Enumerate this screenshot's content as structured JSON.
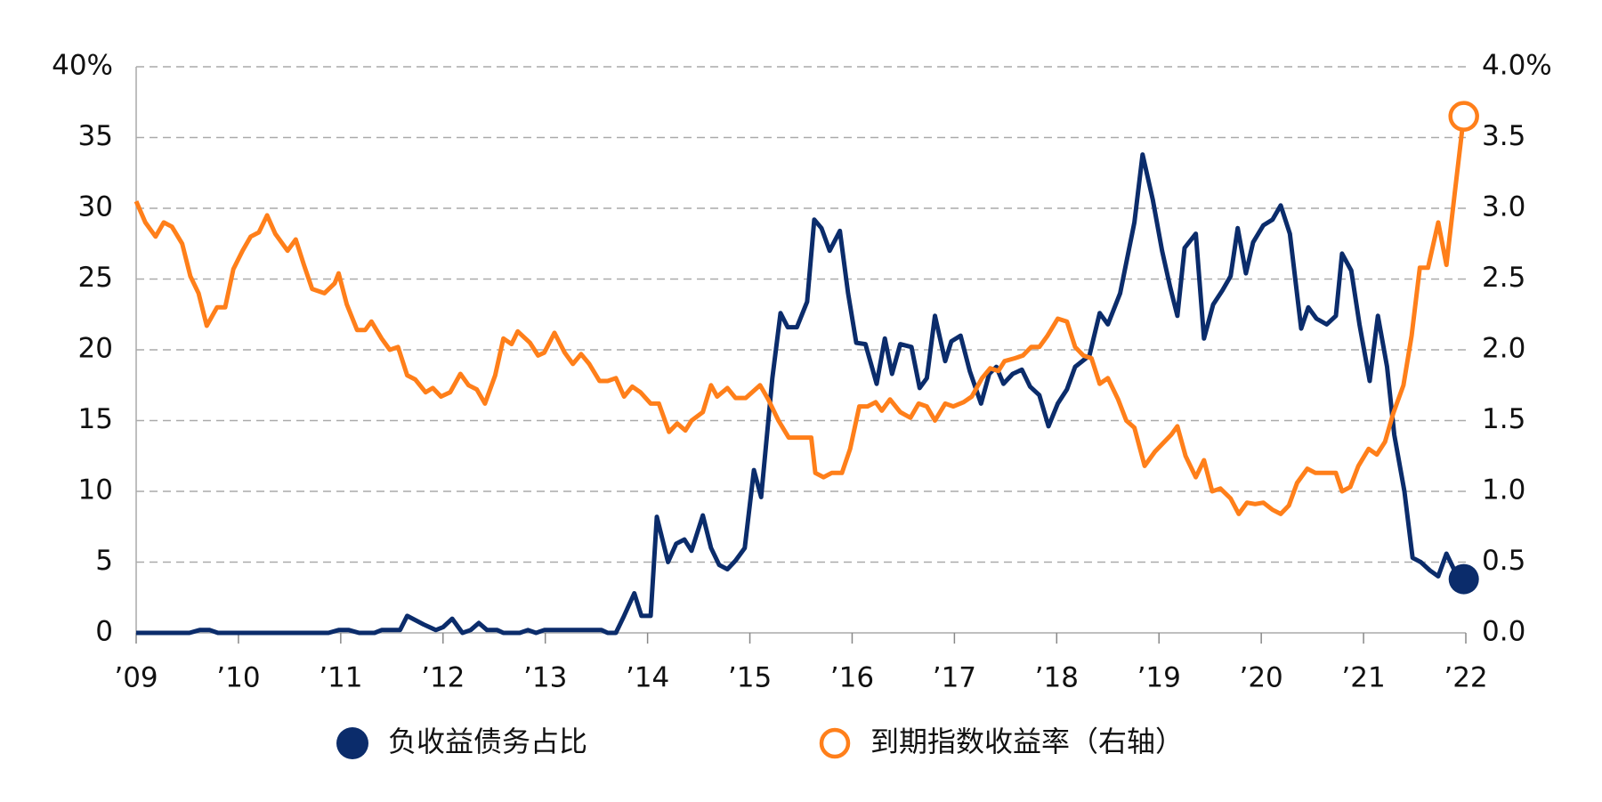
{
  "chart_data": {
    "type": "line",
    "xlim": [
      2009,
      2022
    ],
    "xticks": [
      {
        "value": 2009,
        "label": "’09"
      },
      {
        "value": 2010,
        "label": "’10"
      },
      {
        "value": 2011,
        "label": "’11"
      },
      {
        "value": 2012,
        "label": "’12"
      },
      {
        "value": 2013,
        "label": "’13"
      },
      {
        "value": 2014,
        "label": "’14"
      },
      {
        "value": 2015,
        "label": "’15"
      },
      {
        "value": 2016,
        "label": "’16"
      },
      {
        "value": 2017,
        "label": "’17"
      },
      {
        "value": 2018,
        "label": "’18"
      },
      {
        "value": 2019,
        "label": "’19"
      },
      {
        "value": 2020,
        "label": "’20"
      },
      {
        "value": 2021,
        "label": "’21"
      },
      {
        "value": 2022,
        "label": "’22"
      }
    ],
    "ylim": [
      0,
      40
    ],
    "yticks": [
      0,
      5,
      10,
      15,
      20,
      25,
      30,
      35,
      {
        "value": 40,
        "label": "40%"
      }
    ],
    "y2lim": [
      0,
      4
    ],
    "y2ticks": [
      {
        "value": 0,
        "label": "0.0"
      },
      {
        "value": 0.5,
        "label": "0.5"
      },
      {
        "value": 1,
        "label": "1.0"
      },
      {
        "value": 1.5,
        "label": "1.5"
      },
      {
        "value": 2,
        "label": "2.0"
      },
      {
        "value": 2.5,
        "label": "2.5"
      },
      {
        "value": 3,
        "label": "3.0"
      },
      {
        "value": 3.5,
        "label": "3.5"
      },
      {
        "value": 4,
        "label": "4.0%"
      }
    ],
    "grid": true,
    "series": [
      {
        "name": "负收益债务占比",
        "color": "#0b2c6b",
        "axis": "y",
        "end_marker": "filled",
        "x": [
          2009.0,
          2009.52,
          2009.62,
          2009.72,
          2009.8,
          2010.88,
          2010.98,
          2011.08,
          2011.18,
          2011.33,
          2011.4,
          2011.58,
          2011.65,
          2011.81,
          2011.93,
          2012.0,
          2012.09,
          2012.19,
          2012.27,
          2012.35,
          2012.43,
          2012.53,
          2012.59,
          2012.75,
          2012.83,
          2012.91,
          2012.99,
          2013.55,
          2013.61,
          2013.69,
          2013.77,
          2013.87,
          2013.94,
          2014.03,
          2014.09,
          2014.2,
          2014.28,
          2014.36,
          2014.43,
          2014.54,
          2014.62,
          2014.7,
          2014.78,
          2014.86,
          2014.95,
          2015.04,
          2015.11,
          2015.22,
          2015.3,
          2015.37,
          2015.46,
          2015.56,
          2015.63,
          2015.7,
          2015.78,
          2015.88,
          2015.96,
          2016.04,
          2016.13,
          2016.24,
          2016.32,
          2016.39,
          2016.47,
          2016.58,
          2016.66,
          2016.73,
          2016.81,
          2016.91,
          2016.97,
          2017.06,
          2017.15,
          2017.26,
          2017.34,
          2017.41,
          2017.48,
          2017.57,
          2017.66,
          2017.74,
          2017.83,
          2017.92,
          2018.01,
          2018.1,
          2018.18,
          2018.32,
          2018.42,
          2018.5,
          2018.62,
          2018.76,
          2018.84,
          2018.94,
          2019.03,
          2019.11,
          2019.18,
          2019.25,
          2019.36,
          2019.44,
          2019.53,
          2019.62,
          2019.7,
          2019.77,
          2019.85,
          2019.92,
          2020.02,
          2020.11,
          2020.19,
          2020.28,
          2020.39,
          2020.46,
          2020.54,
          2020.64,
          2020.73,
          2020.79,
          2020.88,
          2020.96,
          2021.06,
          2021.14,
          2021.23,
          2021.3,
          2021.4,
          2021.48,
          2021.56,
          2021.65,
          2021.73,
          2021.81,
          2021.89,
          2021.98
        ],
        "values": [
          0,
          0,
          0.2,
          0.2,
          0,
          0,
          0.2,
          0.2,
          0,
          0,
          0.2,
          0.2,
          1.2,
          0.6,
          0.2,
          0.4,
          1.0,
          0,
          0.2,
          0.7,
          0.2,
          0.2,
          0,
          0,
          0.2,
          0,
          0.2,
          0.2,
          0,
          0,
          1.2,
          2.8,
          1.2,
          1.2,
          8.2,
          5,
          6.3,
          6.6,
          5.8,
          8.3,
          6,
          4.8,
          4.5,
          5.1,
          6,
          11.5,
          9.6,
          18,
          22.6,
          21.6,
          21.6,
          23.4,
          29.2,
          28.6,
          27,
          28.4,
          24,
          20.5,
          20.4,
          17.6,
          20.8,
          18.3,
          20.4,
          20.2,
          17.3,
          18,
          22.4,
          19.2,
          20.6,
          21,
          18.5,
          16.2,
          18.3,
          18.8,
          17.6,
          18.3,
          18.6,
          17.4,
          16.8,
          14.6,
          16.2,
          17.2,
          18.8,
          19.6,
          22.6,
          21.8,
          24,
          29,
          33.8,
          30.6,
          27,
          24.4,
          22.4,
          27.2,
          28.2,
          20.8,
          23.2,
          24.2,
          25.2,
          28.6,
          25.4,
          27.6,
          28.8,
          29.2,
          30.2,
          28.2,
          21.5,
          23,
          22.2,
          21.8,
          22.4,
          26.8,
          25.6,
          21.8,
          17.8,
          22.4,
          18.8,
          14,
          10,
          5.3,
          5,
          4.4,
          4,
          5.6,
          4.4,
          3.8
        ]
      },
      {
        "name": "到期指数收益率（右轴）",
        "color": "#ff7f1a",
        "axis": "y2",
        "end_marker": "hollow",
        "x": [
          2009.0,
          2009.09,
          2009.19,
          2009.27,
          2009.35,
          2009.45,
          2009.53,
          2009.61,
          2009.69,
          2009.79,
          2009.87,
          2009.95,
          2010.04,
          2010.12,
          2010.2,
          2010.28,
          2010.36,
          2010.48,
          2010.56,
          2010.64,
          2010.72,
          2010.84,
          2010.94,
          2010.98,
          2011.06,
          2011.16,
          2011.24,
          2011.3,
          2011.4,
          2011.48,
          2011.56,
          2011.65,
          2011.73,
          2011.83,
          2011.9,
          2011.98,
          2012.07,
          2012.17,
          2012.25,
          2012.33,
          2012.41,
          2012.51,
          2012.59,
          2012.67,
          2012.73,
          2012.85,
          2012.93,
          2012.99,
          2013.09,
          2013.19,
          2013.27,
          2013.35,
          2013.43,
          2013.53,
          2013.61,
          2013.69,
          2013.77,
          2013.85,
          2013.93,
          2014.03,
          2014.11,
          2014.21,
          2014.29,
          2014.37,
          2014.43,
          2014.54,
          2014.62,
          2014.68,
          2014.78,
          2014.86,
          2014.96,
          2015.1,
          2015.18,
          2015.28,
          2015.38,
          2015.48,
          2015.6,
          2015.64,
          2015.72,
          2015.8,
          2015.9,
          2015.98,
          2016.07,
          2016.15,
          2016.23,
          2016.29,
          2016.37,
          2016.47,
          2016.57,
          2016.65,
          2016.73,
          2016.81,
          2016.91,
          2016.99,
          2017.09,
          2017.17,
          2017.27,
          2017.35,
          2017.43,
          2017.49,
          2017.59,
          2017.67,
          2017.75,
          2017.83,
          2017.91,
          2018.01,
          2018.1,
          2018.18,
          2018.26,
          2018.34,
          2018.42,
          2018.5,
          2018.6,
          2018.68,
          2018.76,
          2018.86,
          2018.96,
          2019.04,
          2019.12,
          2019.18,
          2019.26,
          2019.36,
          2019.44,
          2019.52,
          2019.6,
          2019.7,
          2019.78,
          2019.86,
          2019.94,
          2020.02,
          2020.11,
          2020.19,
          2020.27,
          2020.35,
          2020.45,
          2020.53,
          2020.63,
          2020.73,
          2020.79,
          2020.87,
          2020.95,
          2021.05,
          2021.13,
          2021.21,
          2021.29,
          2021.39,
          2021.47,
          2021.55,
          2021.63,
          2021.73,
          2021.81,
          2021.89,
          2021.98
        ],
        "values": [
          3.05,
          2.9,
          2.8,
          2.9,
          2.87,
          2.75,
          2.52,
          2.4,
          2.17,
          2.3,
          2.3,
          2.57,
          2.7,
          2.8,
          2.83,
          2.95,
          2.82,
          2.7,
          2.78,
          2.6,
          2.43,
          2.4,
          2.47,
          2.54,
          2.32,
          2.14,
          2.14,
          2.2,
          2.08,
          2.0,
          2.02,
          1.82,
          1.79,
          1.7,
          1.73,
          1.67,
          1.7,
          1.83,
          1.75,
          1.72,
          1.62,
          1.82,
          2.08,
          2.04,
          2.13,
          2.05,
          1.96,
          1.98,
          2.12,
          1.98,
          1.9,
          1.97,
          1.9,
          1.78,
          1.78,
          1.8,
          1.67,
          1.74,
          1.7,
          1.62,
          1.62,
          1.42,
          1.48,
          1.43,
          1.5,
          1.56,
          1.75,
          1.67,
          1.73,
          1.66,
          1.66,
          1.75,
          1.65,
          1.5,
          1.38,
          1.38,
          1.38,
          1.13,
          1.1,
          1.13,
          1.13,
          1.3,
          1.6,
          1.6,
          1.63,
          1.57,
          1.65,
          1.56,
          1.52,
          1.62,
          1.6,
          1.5,
          1.62,
          1.6,
          1.63,
          1.67,
          1.8,
          1.87,
          1.85,
          1.92,
          1.94,
          1.96,
          2.02,
          2.02,
          2.1,
          2.22,
          2.2,
          2.02,
          1.96,
          1.94,
          1.76,
          1.8,
          1.65,
          1.5,
          1.45,
          1.18,
          1.28,
          1.34,
          1.4,
          1.46,
          1.25,
          1.1,
          1.22,
          1.0,
          1.02,
          0.95,
          0.84,
          0.92,
          0.91,
          0.92,
          0.87,
          0.84,
          0.9,
          1.06,
          1.16,
          1.13,
          1.13,
          1.13,
          1.0,
          1.03,
          1.18,
          1.3,
          1.26,
          1.35,
          1.55,
          1.75,
          2.1,
          2.58,
          2.58,
          2.9,
          2.6,
          3.1,
          3.65
        ]
      }
    ]
  }
}
